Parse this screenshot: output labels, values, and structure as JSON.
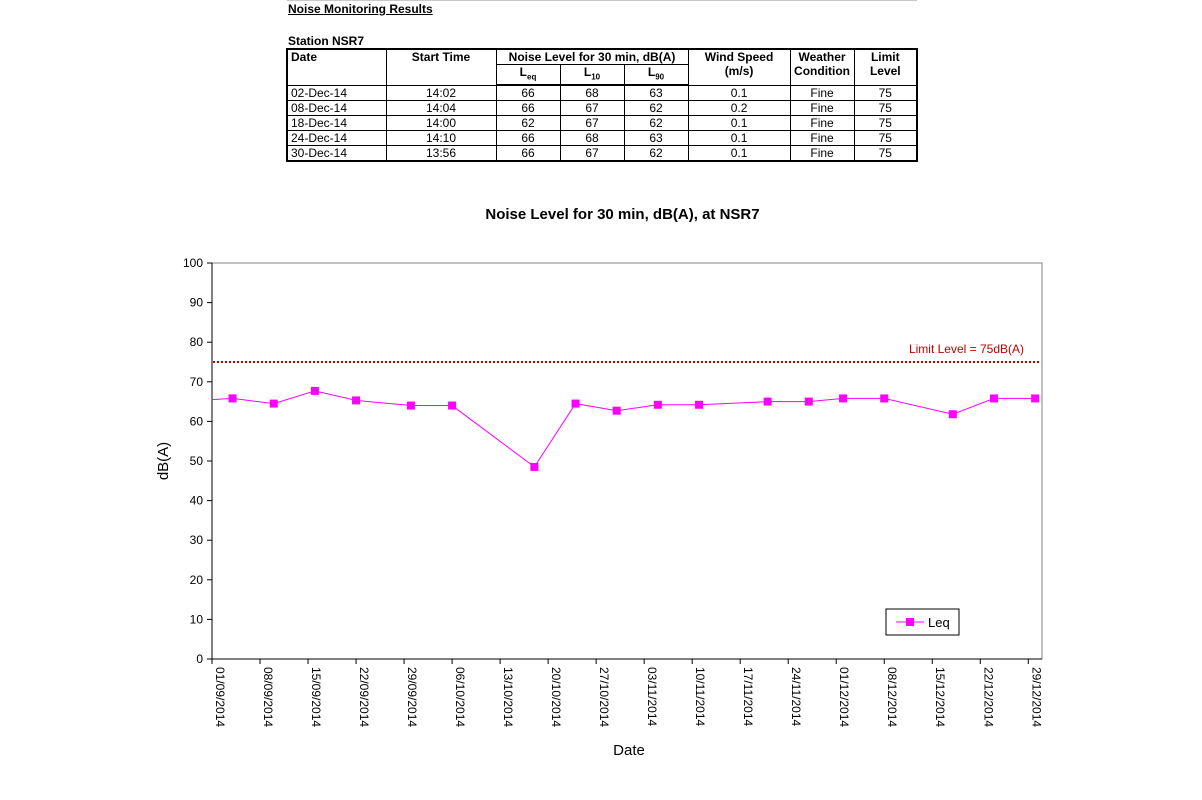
{
  "heading": "Noise Monitoring Results",
  "station": "Station NSR7",
  "table": {
    "headers": {
      "date": "Date",
      "start_time": "Start Time",
      "noise_group": "Noise Level for 30 min, dB(A)",
      "leq": "L",
      "leq_sub": "eq",
      "l10": "L",
      "l10_sub": "10",
      "l90": "L",
      "l90_sub": "90",
      "wind_line1": "Wind Speed",
      "wind_line2": "(m/s)",
      "weather_line1": "Weather",
      "weather_line2": "Condition",
      "limit_line1": "Limit",
      "limit_line2": "Level"
    },
    "rows": [
      {
        "date": "02-Dec-14",
        "time": "14:02",
        "leq": "66",
        "l10": "68",
        "l90": "63",
        "wind": "0.1",
        "weather": "Fine",
        "limit": "75"
      },
      {
        "date": "08-Dec-14",
        "time": "14:04",
        "leq": "66",
        "l10": "67",
        "l90": "62",
        "wind": "0.2",
        "weather": "Fine",
        "limit": "75"
      },
      {
        "date": "18-Dec-14",
        "time": "14:00",
        "leq": "62",
        "l10": "67",
        "l90": "62",
        "wind": "0.1",
        "weather": "Fine",
        "limit": "75"
      },
      {
        "date": "24-Dec-14",
        "time": "14:10",
        "leq": "66",
        "l10": "68",
        "l90": "63",
        "wind": "0.1",
        "weather": "Fine",
        "limit": "75"
      },
      {
        "date": "30-Dec-14",
        "time": "13:56",
        "leq": "66",
        "l10": "67",
        "l90": "62",
        "wind": "0.1",
        "weather": "Fine",
        "limit": "75"
      }
    ]
  },
  "chart_data": {
    "type": "line",
    "title": "Noise Level for 30 min, dB(A), at NSR7",
    "xlabel": "Date",
    "ylabel": "dB(A)",
    "ylim": [
      0,
      100
    ],
    "yticks": [
      0,
      10,
      20,
      30,
      40,
      50,
      60,
      70,
      80,
      90,
      100
    ],
    "xlim": [
      "01/09/2014",
      "31/12/2014"
    ],
    "xticks": [
      "01/09/2014",
      "08/09/2014",
      "15/09/2014",
      "22/09/2014",
      "29/09/2014",
      "06/10/2014",
      "13/10/2014",
      "20/10/2014",
      "27/10/2014",
      "03/11/2014",
      "10/11/2014",
      "17/11/2014",
      "24/11/2014",
      "01/12/2014",
      "08/12/2014",
      "15/12/2014",
      "22/12/2014",
      "29/12/2014"
    ],
    "grid": false,
    "legend_position": "bottom-right",
    "series": [
      {
        "name": "Leq",
        "color": "#ff00ff",
        "line_start": {
          "x": "01/09/2014",
          "y": 65.5
        },
        "x": [
          "04/09/2014",
          "10/09/2014",
          "16/09/2014",
          "22/09/2014",
          "30/09/2014",
          "06/10/2014",
          "18/10/2014",
          "24/10/2014",
          "30/10/2014",
          "05/11/2014",
          "11/11/2014",
          "21/11/2014",
          "27/11/2014",
          "02/12/2014",
          "08/12/2014",
          "18/12/2014",
          "24/12/2014",
          "30/12/2014"
        ],
        "y": [
          65.8,
          64.5,
          67.7,
          65.3,
          64.0,
          64.0,
          48.5,
          64.5,
          62.7,
          64.2,
          64.2,
          65.0,
          65.0,
          65.8,
          65.8,
          61.8,
          65.8,
          65.8
        ]
      }
    ],
    "limit_line": {
      "value": 75,
      "label": "Limit Level = 75dB(A)",
      "color": "#c00000"
    }
  }
}
